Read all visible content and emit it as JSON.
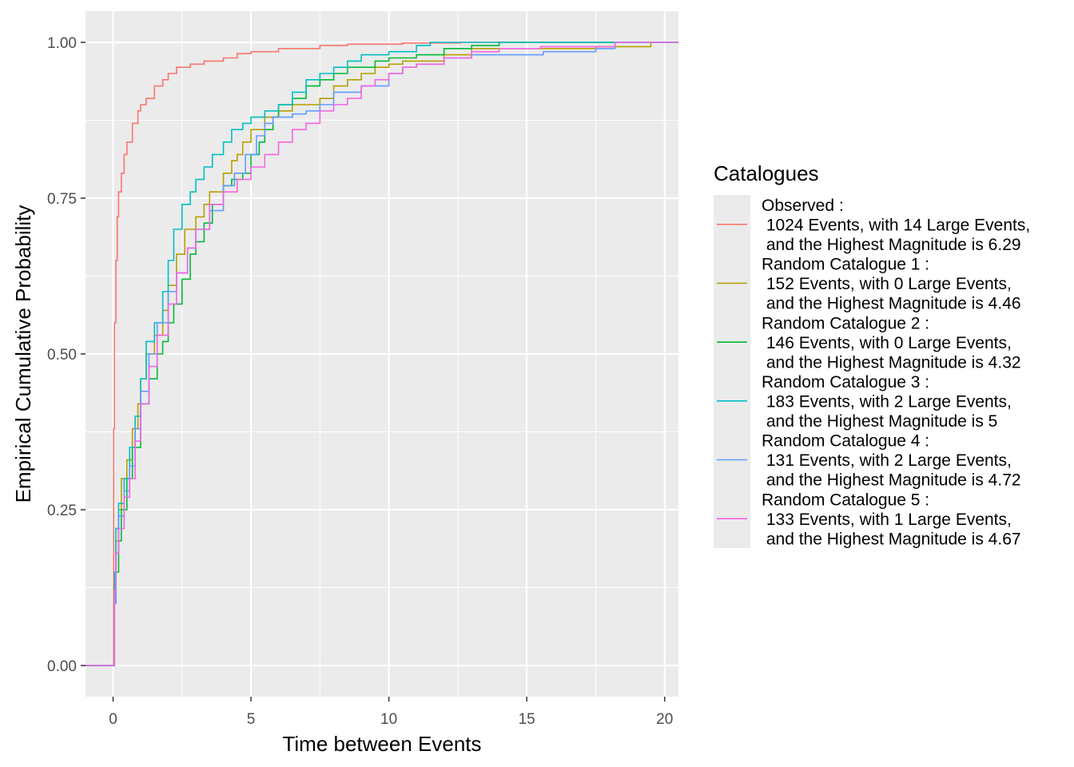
{
  "chart_data": {
    "type": "line",
    "xlabel": "Time between Events",
    "ylabel": "Empirical Cumulative Probability",
    "xlim": [
      -1.0,
      20.5
    ],
    "ylim": [
      -0.05,
      1.05
    ],
    "x_ticks": [
      0,
      5,
      10,
      15,
      20
    ],
    "x_tick_labels": [
      "0",
      "5",
      "10",
      "15",
      "20"
    ],
    "y_ticks": [
      0,
      0.25,
      0.5,
      0.75,
      1
    ],
    "y_tick_labels": [
      "0.00",
      "0.25",
      "0.50",
      "0.75",
      "1.00"
    ],
    "grid": true,
    "background": "#ebebeb",
    "legend": {
      "title": "Catalogues",
      "position": "right"
    },
    "series": [
      {
        "name": "Observed :\n 1024 Events, with 14 Large Events,\n and the Highest Magnitude is 6.29",
        "color": "#F8766D",
        "points": [
          [
            -1,
            0
          ],
          [
            0,
            0
          ],
          [
            0.02,
            0.38
          ],
          [
            0.05,
            0.55
          ],
          [
            0.1,
            0.65
          ],
          [
            0.15,
            0.72
          ],
          [
            0.2,
            0.76
          ],
          [
            0.3,
            0.79
          ],
          [
            0.4,
            0.82
          ],
          [
            0.5,
            0.84
          ],
          [
            0.7,
            0.87
          ],
          [
            0.9,
            0.89
          ],
          [
            1.0,
            0.9
          ],
          [
            1.2,
            0.91
          ],
          [
            1.5,
            0.93
          ],
          [
            1.8,
            0.94
          ],
          [
            2.0,
            0.95
          ],
          [
            2.3,
            0.96
          ],
          [
            2.8,
            0.965
          ],
          [
            3.3,
            0.97
          ],
          [
            4.0,
            0.975
          ],
          [
            4.5,
            0.982
          ],
          [
            5.0,
            0.985
          ],
          [
            6.0,
            0.99
          ],
          [
            7.5,
            0.995
          ],
          [
            8.5,
            0.997
          ],
          [
            10.5,
            0.999
          ],
          [
            12.6,
            1.0
          ],
          [
            20.5,
            1.0
          ]
        ]
      },
      {
        "name": "Random Catalogue 1 :\n 152 Events, with 0 Large Events,\n and the Highest Magnitude is 4.46",
        "color": "#B79F00",
        "points": [
          [
            -1,
            0
          ],
          [
            0,
            0
          ],
          [
            0.05,
            0.12
          ],
          [
            0.1,
            0.2
          ],
          [
            0.2,
            0.25
          ],
          [
            0.3,
            0.3
          ],
          [
            0.5,
            0.33
          ],
          [
            0.7,
            0.38
          ],
          [
            0.9,
            0.42
          ],
          [
            1.0,
            0.46
          ],
          [
            1.2,
            0.5
          ],
          [
            1.5,
            0.53
          ],
          [
            1.8,
            0.57
          ],
          [
            2.0,
            0.61
          ],
          [
            2.3,
            0.66
          ],
          [
            2.6,
            0.7
          ],
          [
            3.0,
            0.72
          ],
          [
            3.3,
            0.74
          ],
          [
            3.5,
            0.76
          ],
          [
            4.0,
            0.79
          ],
          [
            4.3,
            0.81
          ],
          [
            4.5,
            0.82
          ],
          [
            4.7,
            0.84
          ],
          [
            5.0,
            0.86
          ],
          [
            5.5,
            0.88
          ],
          [
            6.0,
            0.89
          ],
          [
            6.5,
            0.9
          ],
          [
            7.0,
            0.9
          ],
          [
            7.5,
            0.91
          ],
          [
            8.0,
            0.93
          ],
          [
            8.5,
            0.94
          ],
          [
            9.0,
            0.95
          ],
          [
            9.5,
            0.96
          ],
          [
            10.0,
            0.965
          ],
          [
            10.5,
            0.97
          ],
          [
            12.0,
            0.98
          ],
          [
            13.0,
            0.99
          ],
          [
            17.5,
            0.993
          ],
          [
            19.5,
            1.0
          ],
          [
            20.5,
            1.0
          ]
        ]
      },
      {
        "name": "Random Catalogue 2 :\n 146 Events, with 0 Large Events,\n and the Highest Magnitude is 4.32",
        "color": "#00BA38",
        "points": [
          [
            -1,
            0
          ],
          [
            0,
            0
          ],
          [
            0.05,
            0.1
          ],
          [
            0.1,
            0.15
          ],
          [
            0.2,
            0.2
          ],
          [
            0.3,
            0.25
          ],
          [
            0.5,
            0.3
          ],
          [
            0.7,
            0.35
          ],
          [
            1.0,
            0.42
          ],
          [
            1.3,
            0.46
          ],
          [
            1.6,
            0.5
          ],
          [
            1.8,
            0.52
          ],
          [
            2.0,
            0.55
          ],
          [
            2.2,
            0.58
          ],
          [
            2.5,
            0.62
          ],
          [
            2.8,
            0.66
          ],
          [
            3.0,
            0.68
          ],
          [
            3.3,
            0.71
          ],
          [
            3.6,
            0.74
          ],
          [
            4.0,
            0.77
          ],
          [
            4.3,
            0.78
          ],
          [
            4.7,
            0.79
          ],
          [
            5.0,
            0.82
          ],
          [
            5.3,
            0.84
          ],
          [
            5.5,
            0.86
          ],
          [
            5.8,
            0.88
          ],
          [
            6.0,
            0.9
          ],
          [
            6.5,
            0.91
          ],
          [
            7.0,
            0.93
          ],
          [
            7.5,
            0.94
          ],
          [
            8.0,
            0.95
          ],
          [
            8.5,
            0.96
          ],
          [
            9.5,
            0.97
          ],
          [
            10.0,
            0.975
          ],
          [
            11.0,
            0.98
          ],
          [
            12.0,
            0.99
          ],
          [
            13.0,
            0.995
          ],
          [
            14.0,
            1.0
          ],
          [
            20.5,
            1.0
          ]
        ]
      },
      {
        "name": "Random Catalogue 3 :\n 183 Events, with 2 Large Events,\n and the Highest Magnitude is 5",
        "color": "#00BFC4",
        "points": [
          [
            -1,
            0
          ],
          [
            0,
            0
          ],
          [
            0.05,
            0.15
          ],
          [
            0.1,
            0.22
          ],
          [
            0.2,
            0.26
          ],
          [
            0.4,
            0.3
          ],
          [
            0.6,
            0.35
          ],
          [
            0.8,
            0.4
          ],
          [
            1.0,
            0.46
          ],
          [
            1.2,
            0.52
          ],
          [
            1.5,
            0.55
          ],
          [
            1.8,
            0.6
          ],
          [
            2.0,
            0.65
          ],
          [
            2.2,
            0.7
          ],
          [
            2.5,
            0.74
          ],
          [
            2.8,
            0.76
          ],
          [
            3.0,
            0.78
          ],
          [
            3.3,
            0.8
          ],
          [
            3.6,
            0.82
          ],
          [
            4.0,
            0.84
          ],
          [
            4.3,
            0.86
          ],
          [
            4.7,
            0.87
          ],
          [
            5.0,
            0.88
          ],
          [
            5.5,
            0.89
          ],
          [
            6.0,
            0.9
          ],
          [
            6.5,
            0.92
          ],
          [
            7.0,
            0.94
          ],
          [
            7.5,
            0.95
          ],
          [
            8.0,
            0.96
          ],
          [
            8.5,
            0.97
          ],
          [
            9.0,
            0.98
          ],
          [
            10.0,
            0.985
          ],
          [
            11.0,
            0.995
          ],
          [
            11.5,
            1.0
          ],
          [
            20.5,
            1.0
          ]
        ]
      },
      {
        "name": "Random Catalogue 4 :\n 131 Events, with 2 Large Events,\n and the Highest Magnitude is 4.72",
        "color": "#619CFF",
        "points": [
          [
            -1,
            0
          ],
          [
            0,
            0
          ],
          [
            0.05,
            0.1
          ],
          [
            0.1,
            0.18
          ],
          [
            0.2,
            0.24
          ],
          [
            0.4,
            0.28
          ],
          [
            0.6,
            0.32
          ],
          [
            0.8,
            0.38
          ],
          [
            1.0,
            0.44
          ],
          [
            1.3,
            0.5
          ],
          [
            1.6,
            0.55
          ],
          [
            2.0,
            0.6
          ],
          [
            2.3,
            0.63
          ],
          [
            2.7,
            0.67
          ],
          [
            3.0,
            0.7
          ],
          [
            3.5,
            0.73
          ],
          [
            4.0,
            0.77
          ],
          [
            4.4,
            0.79
          ],
          [
            4.8,
            0.82
          ],
          [
            5.2,
            0.85
          ],
          [
            5.5,
            0.87
          ],
          [
            5.8,
            0.88
          ],
          [
            6.5,
            0.885
          ],
          [
            7.0,
            0.89
          ],
          [
            7.5,
            0.9
          ],
          [
            8.0,
            0.92
          ],
          [
            9.0,
            0.93
          ],
          [
            10.0,
            0.95
          ],
          [
            10.5,
            0.96
          ],
          [
            11.0,
            0.965
          ],
          [
            12.0,
            0.975
          ],
          [
            13.0,
            0.98
          ],
          [
            15.6,
            0.985
          ],
          [
            17.5,
            0.99
          ],
          [
            18.2,
            1.0
          ],
          [
            20.5,
            1.0
          ]
        ]
      },
      {
        "name": "Random Catalogue 5 :\n 133 Events, with 1 Large Events,\n and the Highest Magnitude is 4.67",
        "color": "#F564E3",
        "points": [
          [
            -1,
            0
          ],
          [
            0,
            0
          ],
          [
            0.05,
            0.12
          ],
          [
            0.1,
            0.18
          ],
          [
            0.2,
            0.22
          ],
          [
            0.4,
            0.27
          ],
          [
            0.6,
            0.3
          ],
          [
            0.8,
            0.36
          ],
          [
            1.0,
            0.42
          ],
          [
            1.3,
            0.48
          ],
          [
            1.6,
            0.53
          ],
          [
            2.0,
            0.58
          ],
          [
            2.3,
            0.63
          ],
          [
            2.7,
            0.67
          ],
          [
            3.0,
            0.7
          ],
          [
            3.5,
            0.74
          ],
          [
            4.0,
            0.76
          ],
          [
            4.5,
            0.78
          ],
          [
            5.0,
            0.8
          ],
          [
            5.5,
            0.82
          ],
          [
            6.0,
            0.84
          ],
          [
            6.5,
            0.86
          ],
          [
            7.0,
            0.87
          ],
          [
            7.5,
            0.89
          ],
          [
            8.0,
            0.9
          ],
          [
            8.5,
            0.91
          ],
          [
            9.0,
            0.93
          ],
          [
            9.5,
            0.94
          ],
          [
            10.0,
            0.95
          ],
          [
            10.5,
            0.96
          ],
          [
            11.0,
            0.965
          ],
          [
            12.0,
            0.975
          ],
          [
            13.0,
            0.985
          ],
          [
            14.0,
            0.99
          ],
          [
            15.5,
            0.993
          ],
          [
            18.2,
            1.0
          ],
          [
            20.5,
            1.0
          ]
        ]
      }
    ]
  }
}
